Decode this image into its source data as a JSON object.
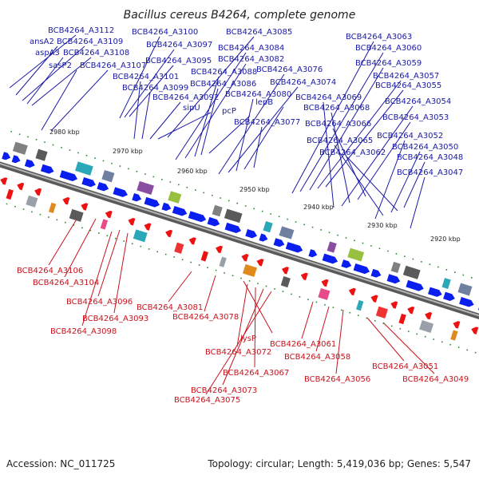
{
  "title": "Bacillus cereus B4264, complete genome",
  "footer": {
    "accession": "Accession: NC_011725",
    "summary": "Topology: circular; Length: 5,419,036 bp; Genes: 5,547"
  },
  "colors": {
    "forward_label": "#1a1aa6",
    "reverse_label": "#c8141e",
    "forward_gene": "#0a1ef0",
    "reverse_gene": "#ee1111",
    "backbone": "#8a8a8a",
    "tick_mark": "#1f8a1f"
  },
  "ticks": [
    "2980 kbp",
    "2970 kbp",
    "2960 kbp",
    "2950 kbp",
    "2940 kbp",
    "2930 kbp",
    "2920 kbp"
  ],
  "forward_labels": [
    "BCB4264_A3112",
    "ansA2",
    "BCB4264_A3109",
    "aspA3",
    "BCB4264_A3108",
    "sasP2",
    "BCB4264_A3107",
    "BCB4264_A3100",
    "BCB4264_A3097",
    "BCB4264_A3095",
    "BCB4264_A3101",
    "BCB4264_A3099",
    "BCB4264_A3092",
    "sipU",
    "BCB4264_A3085",
    "BCB4264_A3084",
    "BCB4264_A3082",
    "BCB4264_A3088",
    "BCB4264_A3086",
    "pcP",
    "BCB4264_A3076",
    "BCB4264_A3074",
    "BCB4264_A3080",
    "lepB",
    "BCB4264_A3077",
    "BCB4264_A3063",
    "BCB4264_A3060",
    "BCB4264_A3059",
    "BCB4264_A3057",
    "BCB4264_A3055",
    "BCB4264_A3069",
    "BCB4264_A3054",
    "BCB4264_A3068",
    "BCB4264_A3053",
    "BCB4264_A3066",
    "BCB4264_A3052",
    "BCB4264_A3065",
    "BCB4264_A3050",
    "BCB4264_A3062",
    "BCB4264_A3048",
    "BCB4264_A3047"
  ],
  "reverse_labels": [
    "BCB4264_A3106",
    "BCB4264_A3104",
    "BCB4264_A3096",
    "BCB4264_A3093",
    "BCB4264_A3098",
    "BCB4264_A3081",
    "BCB4264_A3078",
    "lysP",
    "BCB4264_A3072",
    "BCB4264_A3067",
    "BCB4264_A3073",
    "BCB4264_A3075",
    "BCB4264_A3061",
    "BCB4264_A3058",
    "BCB4264_A3056",
    "BCB4264_A3051",
    "BCB4264_A3049"
  ]
}
